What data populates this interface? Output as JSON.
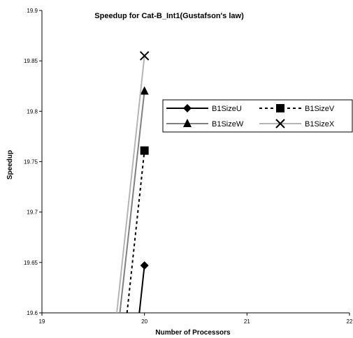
{
  "chart_data": {
    "type": "line",
    "title": "Speedup for Cat-B_Int1(Gustafson's law)",
    "xlabel": "Number of Processors",
    "ylabel": "Speedup",
    "xlim": [
      19,
      22
    ],
    "ylim": [
      19.6,
      19.9
    ],
    "xticks": [
      "19",
      "20",
      "21",
      "22"
    ],
    "yticks": [
      "19.6",
      "19.65",
      "19.7",
      "19.75",
      "19.8",
      "19.85",
      "19.9"
    ],
    "grid": false,
    "legend_position": "right",
    "series": [
      {
        "name": "B1SizeU",
        "color": "#000000",
        "dash": "solid",
        "marker": "diamond",
        "points": [
          [
            19.95,
            19.6
          ],
          [
            20.0,
            19.647
          ]
        ]
      },
      {
        "name": "B1SizeV",
        "color": "#000000",
        "dash": "dashed",
        "marker": "square",
        "points": [
          [
            19.83,
            19.6
          ],
          [
            20.0,
            19.761
          ]
        ]
      },
      {
        "name": "B1SizeW",
        "color": "#808080",
        "dash": "solid",
        "marker": "triangle",
        "points": [
          [
            19.76,
            19.6
          ],
          [
            20.0,
            19.82
          ]
        ]
      },
      {
        "name": "B1SizeX",
        "color": "#b4b4b4",
        "dash": "solid",
        "marker": "x",
        "points": [
          [
            19.73,
            19.6
          ],
          [
            20.0,
            19.855
          ]
        ]
      }
    ]
  }
}
